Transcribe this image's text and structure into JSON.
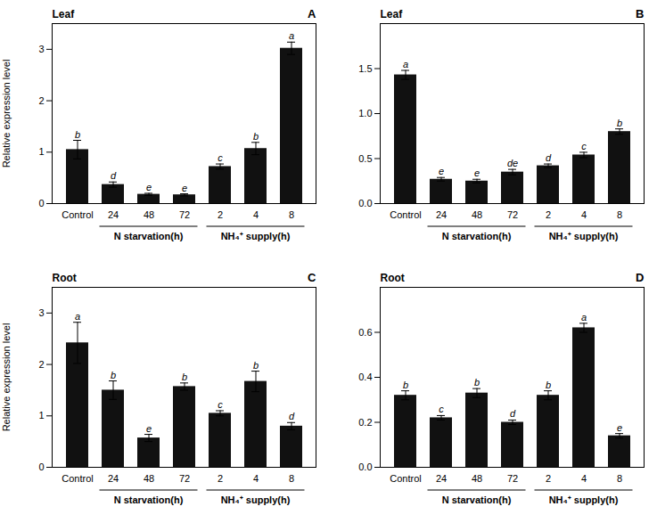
{
  "chart_data": [
    {
      "type": "bar",
      "title": "Leaf",
      "annotations": [
        "A"
      ],
      "ylabel": "Relative expression level",
      "categories": [
        "Control",
        "24",
        "48",
        "72",
        "2",
        "4",
        "8"
      ],
      "values": [
        1.05,
        0.37,
        0.18,
        0.17,
        0.72,
        1.07,
        3.02
      ],
      "errors": [
        0.18,
        0.05,
        0.02,
        0.02,
        0.05,
        0.12,
        0.12
      ],
      "sig_labels": [
        "b",
        "d",
        "e",
        "e",
        "c",
        "b",
        "a"
      ],
      "x_groups": [
        {
          "label": "N starvation(h)",
          "categories": [
            "24",
            "48",
            "72"
          ]
        },
        {
          "label": "NH₄⁺ supply(h)",
          "categories": [
            "2",
            "4",
            "8"
          ]
        }
      ],
      "color": "#111111",
      "ylim": [
        0,
        3.5
      ],
      "yticks": [
        0,
        1,
        2,
        3
      ],
      "grid": false
    },
    {
      "type": "bar",
      "title": "Leaf",
      "annotations": [
        "B"
      ],
      "categories": [
        "Control",
        "24",
        "48",
        "72",
        "2",
        "4",
        "8"
      ],
      "values": [
        1.43,
        0.27,
        0.25,
        0.35,
        0.42,
        0.54,
        0.8
      ],
      "errors": [
        0.05,
        0.02,
        0.02,
        0.03,
        0.02,
        0.03,
        0.03
      ],
      "sig_labels": [
        "a",
        "e",
        "e",
        "de",
        "d",
        "c",
        "b"
      ],
      "x_groups": [
        {
          "label": "N starvation(h)",
          "categories": [
            "24",
            "48",
            "72"
          ]
        },
        {
          "label": "NH₄⁺ supply(h)",
          "categories": [
            "2",
            "4",
            "8"
          ]
        }
      ],
      "color": "#111111",
      "ylim": [
        0.0,
        2.0
      ],
      "yticks": [
        {
          "value": 0.0,
          "label": "0.0"
        },
        0.5,
        {
          "value": 1.0,
          "label": "1.0"
        },
        1.5
      ],
      "grid": false
    },
    {
      "type": "bar",
      "title": "Root",
      "annotations": [
        "C"
      ],
      "ylabel": "Relative expression level",
      "categories": [
        "Control",
        "24",
        "48",
        "72",
        "2",
        "4",
        "8"
      ],
      "values": [
        2.42,
        1.5,
        0.57,
        1.57,
        1.05,
        1.67,
        0.8
      ],
      "errors": [
        0.4,
        0.18,
        0.07,
        0.07,
        0.05,
        0.2,
        0.07
      ],
      "sig_labels": [
        "a",
        "b",
        "e",
        "b",
        "c",
        "b",
        "d"
      ],
      "x_groups": [
        {
          "label": "N starvation(h)",
          "categories": [
            "24",
            "48",
            "72"
          ]
        },
        {
          "label": "NH₄⁺ supply(h)",
          "categories": [
            "2",
            "4",
            "8"
          ]
        }
      ],
      "color": "#111111",
      "ylim": [
        0,
        3.5
      ],
      "yticks": [
        0,
        1,
        2,
        3
      ],
      "grid": false
    },
    {
      "type": "bar",
      "title": "Root",
      "annotations": [
        "D"
      ],
      "categories": [
        "Control",
        "24",
        "48",
        "72",
        "2",
        "4",
        "8"
      ],
      "values": [
        0.32,
        0.22,
        0.33,
        0.2,
        0.32,
        0.62,
        0.14
      ],
      "errors": [
        0.02,
        0.01,
        0.02,
        0.01,
        0.02,
        0.02,
        0.01
      ],
      "sig_labels": [
        "b",
        "c",
        "b",
        "d",
        "b",
        "a",
        "e"
      ],
      "x_groups": [
        {
          "label": "N starvation(h)",
          "categories": [
            "24",
            "48",
            "72"
          ]
        },
        {
          "label": "NH₄⁺ supply(h)",
          "categories": [
            "2",
            "4",
            "8"
          ]
        }
      ],
      "color": "#111111",
      "ylim": [
        0.0,
        0.8
      ],
      "yticks": [
        {
          "value": 0.0,
          "label": "0.0"
        },
        0.2,
        0.4,
        0.6
      ],
      "grid": false
    }
  ]
}
